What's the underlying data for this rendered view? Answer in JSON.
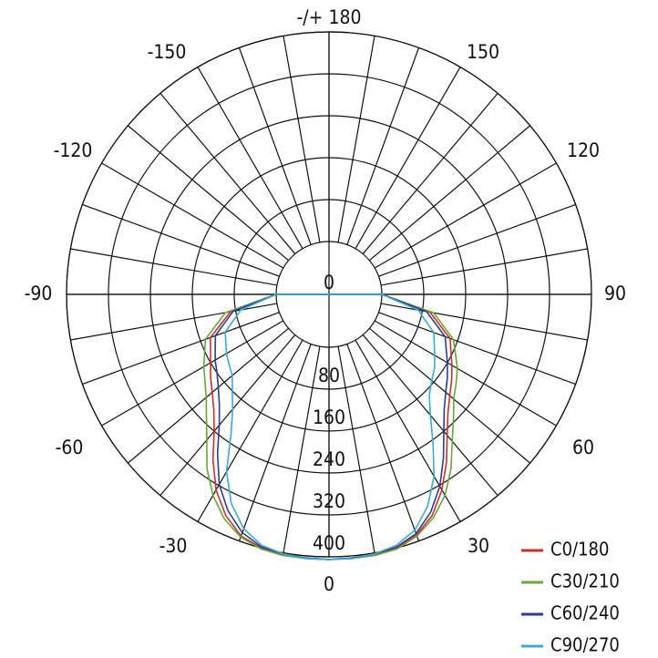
{
  "chart_data": {
    "type": "polar-line",
    "title": "",
    "zero_direction": "bottom",
    "angle_labels": [
      {
        "angle": 0,
        "label": "0"
      },
      {
        "angle": 30,
        "label": "30"
      },
      {
        "angle": 60,
        "label": "60"
      },
      {
        "angle": 90,
        "label": "90"
      },
      {
        "angle": 120,
        "label": "120"
      },
      {
        "angle": 150,
        "label": "150"
      },
      {
        "angle": 180,
        "label": "-/+ 180"
      },
      {
        "angle": -150,
        "label": "-150"
      },
      {
        "angle": -120,
        "label": "-120"
      },
      {
        "angle": -90,
        "label": "-90"
      },
      {
        "angle": -60,
        "label": "-60"
      },
      {
        "angle": -30,
        "label": "-30"
      }
    ],
    "radial_ticks": [
      {
        "value": 0,
        "label": "0"
      },
      {
        "value": 80,
        "label": "80"
      },
      {
        "value": 160,
        "label": "160"
      },
      {
        "value": 240,
        "label": "240"
      },
      {
        "value": 320,
        "label": "320"
      },
      {
        "value": 400,
        "label": "400"
      }
    ],
    "angle_grid_step": 10,
    "angles": [
      -90,
      -80,
      -70,
      -60,
      -55,
      -50,
      -45,
      -40,
      -35,
      -30,
      -25,
      -20,
      -15,
      -10,
      -5,
      0,
      5,
      10,
      15,
      20,
      25,
      30,
      35,
      40,
      45,
      50,
      55,
      60,
      70,
      80,
      90
    ],
    "series": [
      {
        "name": "C0/180",
        "color": "#c8322d",
        "values": [
          0,
          90,
          140,
          160,
          175,
          190,
          210,
          240,
          285,
          330,
          365,
          390,
          400,
          404,
          405,
          405,
          405,
          404,
          400,
          388,
          365,
          330,
          290,
          250,
          220,
          200,
          185,
          170,
          145,
          95,
          0
        ]
      },
      {
        "name": "C30/210",
        "color": "#6aa636",
        "values": [
          0,
          100,
          150,
          175,
          188,
          205,
          230,
          262,
          305,
          342,
          372,
          392,
          402,
          405,
          405,
          405,
          405,
          405,
          402,
          390,
          370,
          342,
          305,
          265,
          235,
          210,
          195,
          182,
          152,
          102,
          0
        ]
      },
      {
        "name": "C60/240",
        "color": "#2e3d8f",
        "values": [
          0,
          85,
          130,
          150,
          160,
          175,
          195,
          225,
          270,
          318,
          355,
          383,
          398,
          402,
          404,
          405,
          404,
          402,
          398,
          385,
          358,
          322,
          280,
          240,
          210,
          190,
          175,
          160,
          135,
          88,
          0
        ]
      },
      {
        "name": "C90/270",
        "color": "#3ea8d8",
        "values": [
          0,
          70,
          110,
          125,
          132,
          140,
          160,
          185,
          225,
          290,
          340,
          375,
          395,
          402,
          405,
          405,
          405,
          402,
          395,
          378,
          345,
          300,
          245,
          200,
          170,
          155,
          145,
          132,
          112,
          72,
          0
        ]
      }
    ],
    "legend": {
      "position": "bottom-right"
    },
    "grid": true
  }
}
